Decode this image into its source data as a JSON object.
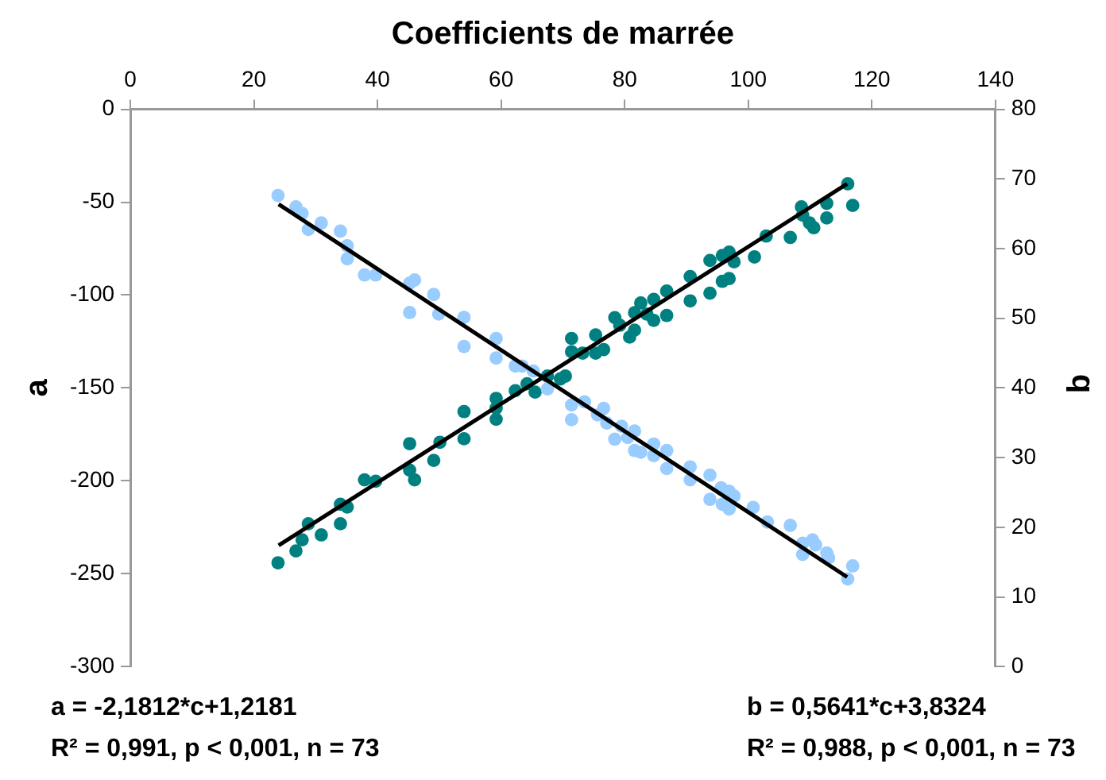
{
  "chart_data": {
    "type": "scatter",
    "xlabel": "Coefficients de marrée",
    "ylabel": "a",
    "y2label": "b",
    "xlim": [
      0,
      140
    ],
    "xticks": [
      0,
      20,
      40,
      60,
      80,
      100,
      120,
      140
    ],
    "ylim": [
      -300,
      0
    ],
    "yticks": [
      -300,
      -250,
      -200,
      -150,
      -100,
      -50,
      0
    ],
    "y2lim": [
      0,
      80
    ],
    "y2ticks": [
      0,
      10,
      20,
      30,
      40,
      50,
      60,
      70,
      80
    ],
    "marker": "circle",
    "legend": false,
    "series": [
      {
        "color": "#99ccff",
        "x": [
          23.9,
          26.8,
          27.8,
          28.8,
          30.9,
          34.0,
          35.1,
          35.1,
          37.9,
          39.7,
          45.2,
          46.0,
          49.1,
          45.2,
          49.9,
          54.0,
          54.0,
          59.2,
          59.2,
          62.3,
          63.4,
          65.2,
          67.5,
          71.4,
          73.5,
          71.4,
          75.6,
          76.6,
          77.1,
          78.4,
          79.5,
          80.5,
          81.6,
          81.6,
          82.6,
          84.7,
          84.7,
          86.8,
          86.8,
          90.6,
          90.6,
          93.8,
          93.8,
          95.6,
          95.8,
          96.9,
          96.9,
          97.7,
          100.8,
          103.1,
          106.8,
          108.8,
          108.8,
          110.4,
          110.9,
          112.7,
          113.0,
          116.1,
          116.9
        ],
        "values": [
          -46.4,
          -52.5,
          -56.0,
          -64.7,
          -61.2,
          -65.6,
          -73.5,
          -80.5,
          -89.2,
          -89.2,
          -93.6,
          -91.9,
          -99.7,
          -109.4,
          -110.2,
          -112.0,
          -127.7,
          -123.4,
          -133.9,
          -138.2,
          -138.2,
          -140.9,
          -150.5,
          -159.2,
          -157.5,
          -167.1,
          -164.5,
          -161.0,
          -168.9,
          -177.6,
          -170.6,
          -176.7,
          -173.2,
          -183.7,
          -184.6,
          -180.2,
          -186.4,
          -183.7,
          -193.4,
          -192.5,
          -199.5,
          -196.9,
          -210.0,
          -203.8,
          -212.6,
          -205.6,
          -215.2,
          -208.2,
          -214.3,
          -222.2,
          -224.0,
          -233.6,
          -239.7,
          -231.8,
          -234.5,
          -238.8,
          -241.5,
          -252.8,
          -245.8
        ]
      },
      {
        "color": "#008080",
        "axis": "y2",
        "x": [
          23.9,
          26.8,
          27.8,
          28.8,
          30.9,
          34.0,
          34.0,
          35.1,
          37.9,
          39.7,
          45.2,
          45.2,
          46.0,
          49.1,
          50.1,
          54.0,
          54.0,
          59.2,
          59.2,
          59.2,
          62.3,
          64.2,
          65.5,
          67.5,
          69.6,
          70.4,
          71.4,
          71.4,
          73.2,
          75.3,
          75.3,
          76.6,
          78.4,
          79.2,
          80.8,
          81.6,
          81.6,
          82.6,
          83.6,
          84.7,
          84.7,
          86.8,
          86.8,
          90.6,
          90.6,
          93.8,
          93.8,
          95.8,
          95.8,
          96.9,
          96.9,
          97.7,
          101.0,
          102.9,
          106.8,
          108.6,
          108.8,
          109.9,
          110.6,
          112.7,
          112.7,
          116.1,
          116.9
        ],
        "values": [
          14.9,
          16.6,
          18.2,
          20.5,
          18.9,
          20.5,
          23.3,
          22.9,
          26.8,
          26.6,
          32.0,
          28.2,
          26.8,
          29.6,
          32.2,
          36.6,
          32.7,
          38.5,
          37.1,
          35.5,
          39.6,
          40.6,
          39.4,
          41.7,
          41.3,
          41.7,
          47.1,
          45.2,
          45.0,
          47.6,
          45.0,
          45.5,
          50.1,
          49.0,
          47.3,
          48.3,
          50.8,
          52.2,
          50.6,
          52.7,
          49.7,
          53.9,
          50.4,
          56.0,
          52.5,
          58.3,
          53.6,
          59.0,
          55.3,
          59.5,
          55.7,
          58.1,
          58.8,
          61.8,
          61.6,
          66.0,
          64.8,
          63.7,
          63.0,
          66.5,
          64.4,
          69.3,
          66.2
        ]
      },
      {
        "type": "line",
        "color": "#000000",
        "marker": "none",
        "x": [
          24,
          116
        ],
        "values": [
          -51.1,
          -251.8
        ]
      },
      {
        "type": "line",
        "color": "#000000",
        "marker": "none",
        "axis": "y2",
        "x": [
          24,
          116
        ],
        "values": [
          17.4,
          69.3
        ]
      }
    ],
    "annotations": [
      "a = -2,1812*c+1,2181",
      "R² = 0,991, p < 0,001, n = 73",
      "b = 0,5641*c+3,8324",
      "R² = 0,988, p < 0,001, n = 73"
    ]
  }
}
